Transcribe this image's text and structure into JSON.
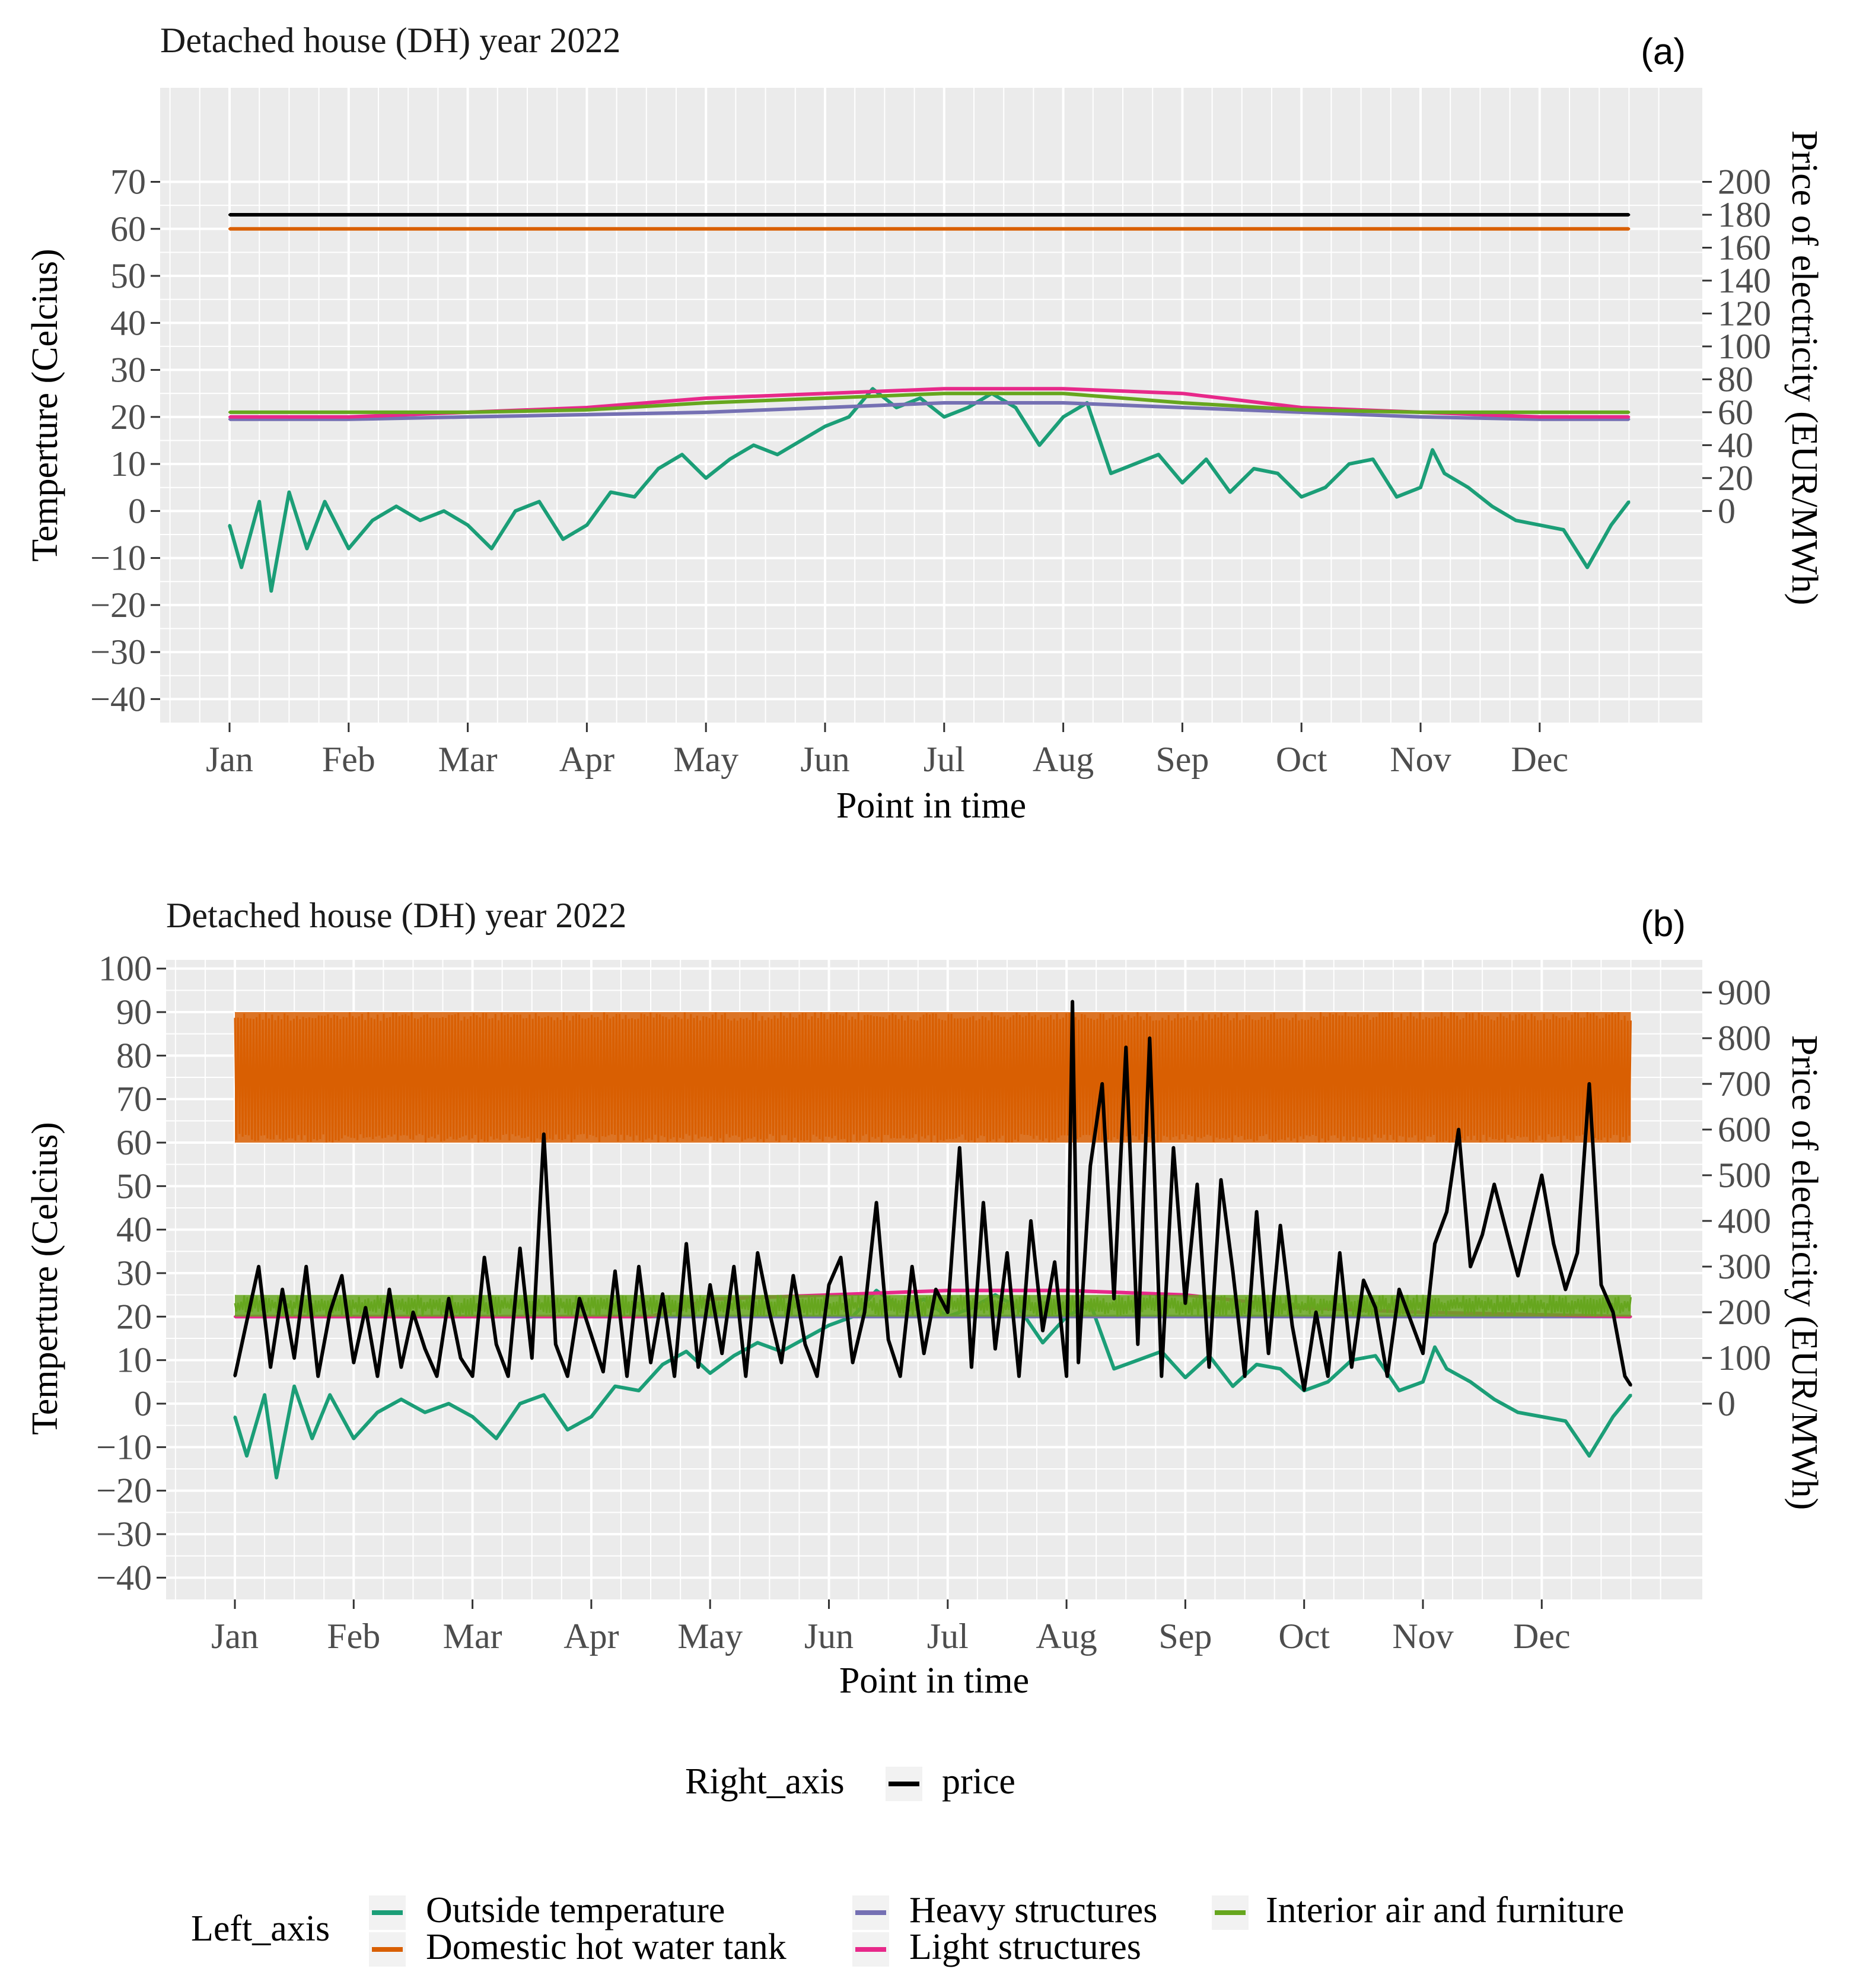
{
  "panels": [
    {
      "title": "Detached house (DH)  year 2022",
      "tag": "(a)"
    },
    {
      "title": "Detached house (DH)  year 2022",
      "tag": "(b)"
    }
  ],
  "legend": {
    "right_axis_title": "Right_axis",
    "right_axis_items": [
      {
        "label": "price",
        "color": "#000000"
      }
    ],
    "left_axis_title": "Left_axis",
    "left_axis_items": [
      {
        "label": "Outside temperature",
        "color": "#1b9e77"
      },
      {
        "label": "Domestic hot water tank",
        "color": "#d95f02"
      },
      {
        "label": "Heavy structures",
        "color": "#7570b3"
      },
      {
        "label": "Light structures",
        "color": "#e7298a"
      },
      {
        "label": "Interior air and furniture",
        "color": "#66a61e"
      }
    ]
  },
  "chart_data": [
    {
      "type": "line",
      "title": "Detached house (DH)  year 2022",
      "tag": "(a)",
      "xlabel": "Point in time",
      "ylabel": "Temperture (Celcius)",
      "ylabel_right": "Price of electricity (EUR/MWh)",
      "x_ticks": [
        "Jan",
        "Feb",
        "Mar",
        "Apr",
        "May",
        "Jun",
        "Jul",
        "Aug",
        "Sep",
        "Oct",
        "Nov",
        "Dec"
      ],
      "y_ticks": [
        -40,
        -30,
        -20,
        -10,
        0,
        10,
        20,
        30,
        40,
        50,
        60,
        70
      ],
      "y_ticks_right": [
        0,
        20,
        40,
        60,
        80,
        100,
        120,
        140,
        160,
        180,
        200
      ],
      "ylim": [
        -45,
        90
      ],
      "right_axis_map": {
        "left_at_0": 0,
        "left_per_unit": 0.35
      },
      "grid": true,
      "series": [
        {
          "name": "Outside temperature",
          "axis": "left",
          "color": "#1b9e77",
          "x_month": [
            0,
            0.1,
            0.25,
            0.35,
            0.5,
            0.65,
            0.8,
            1,
            1.2,
            1.4,
            1.6,
            1.8,
            2,
            2.2,
            2.4,
            2.6,
            2.8,
            3,
            3.2,
            3.4,
            3.6,
            3.8,
            4,
            4.2,
            4.4,
            4.6,
            4.8,
            5,
            5.2,
            5.4,
            5.6,
            5.8,
            6,
            6.2,
            6.4,
            6.6,
            6.8,
            7,
            7.2,
            7.4,
            7.6,
            7.8,
            8,
            8.2,
            8.4,
            8.6,
            8.8,
            9,
            9.2,
            9.4,
            9.6,
            9.8,
            10,
            10.1,
            10.2,
            10.4,
            10.6,
            10.8,
            11,
            11.2,
            11.4,
            11.6,
            11.75
          ],
          "y": [
            -3,
            -12,
            2,
            -17,
            4,
            -8,
            2,
            -8,
            -2,
            1,
            -2,
            0,
            -3,
            -8,
            0,
            2,
            -6,
            -3,
            4,
            3,
            9,
            12,
            7,
            11,
            14,
            12,
            15,
            18,
            20,
            26,
            22,
            24,
            20,
            22,
            25,
            22,
            14,
            20,
            23,
            8,
            10,
            12,
            6,
            11,
            4,
            9,
            8,
            3,
            5,
            10,
            11,
            3,
            5,
            13,
            8,
            5,
            1,
            -2,
            -3,
            -4,
            -12,
            -3,
            2
          ]
        },
        {
          "name": "Domestic hot water tank",
          "axis": "left",
          "color": "#d95f02",
          "x_month": [
            0,
            11.75
          ],
          "y": [
            60,
            60
          ]
        },
        {
          "name": "Heavy structures",
          "axis": "left",
          "color": "#7570b3",
          "x_month": [
            0,
            1,
            2,
            3,
            4,
            5,
            6,
            7,
            8,
            9,
            10,
            11,
            11.75
          ],
          "y": [
            19.5,
            19.5,
            20,
            20.5,
            21,
            22,
            23,
            23,
            22,
            21,
            20,
            19.5,
            19.5
          ]
        },
        {
          "name": "Light structures",
          "axis": "left",
          "color": "#e7298a",
          "x_month": [
            0,
            1,
            2,
            3,
            4,
            5,
            6,
            7,
            8,
            9,
            10,
            11,
            11.75
          ],
          "y": [
            20,
            20,
            21,
            22,
            24,
            25,
            26,
            26,
            25,
            22,
            21,
            20,
            20
          ]
        },
        {
          "name": "Interior air and furniture",
          "axis": "left",
          "color": "#66a61e",
          "x_month": [
            0,
            1,
            2,
            3,
            4,
            5,
            6,
            7,
            8,
            9,
            10,
            11,
            11.75
          ],
          "y": [
            21,
            21,
            21,
            21.5,
            23,
            24,
            25,
            25,
            23,
            21.5,
            21,
            21,
            21
          ]
        },
        {
          "name": "price",
          "axis": "right",
          "color": "#000000",
          "x_month": [
            0,
            11.75
          ],
          "y": [
            180,
            180
          ]
        }
      ]
    },
    {
      "type": "line",
      "title": "Detached house (DH)  year 2022",
      "tag": "(b)",
      "xlabel": "Point in time",
      "ylabel": "Temperture (Celcius)",
      "ylabel_right": "Price of electricity (EUR/MWh)",
      "x_ticks": [
        "Jan",
        "Feb",
        "Mar",
        "Apr",
        "May",
        "Jun",
        "Jul",
        "Aug",
        "Sep",
        "Oct",
        "Nov",
        "Dec"
      ],
      "y_ticks": [
        -40,
        -30,
        -20,
        -10,
        0,
        10,
        20,
        30,
        40,
        50,
        60,
        70,
        80,
        90,
        100
      ],
      "y_ticks_right": [
        0,
        100,
        200,
        300,
        400,
        500,
        600,
        700,
        800,
        900
      ],
      "ylim": [
        -45,
        102
      ],
      "right_axis_map": {
        "left_at_0": 0,
        "left_per_unit": 0.105
      },
      "grid": true,
      "series": [
        {
          "name": "Outside temperature",
          "axis": "left",
          "color": "#1b9e77",
          "x_month": [
            0,
            0.1,
            0.25,
            0.35,
            0.5,
            0.65,
            0.8,
            1,
            1.2,
            1.4,
            1.6,
            1.8,
            2,
            2.2,
            2.4,
            2.6,
            2.8,
            3,
            3.2,
            3.4,
            3.6,
            3.8,
            4,
            4.2,
            4.4,
            4.6,
            4.8,
            5,
            5.2,
            5.4,
            5.6,
            5.8,
            6,
            6.2,
            6.4,
            6.6,
            6.8,
            7,
            7.2,
            7.4,
            7.6,
            7.8,
            8,
            8.2,
            8.4,
            8.6,
            8.8,
            9,
            9.2,
            9.4,
            9.6,
            9.8,
            10,
            10.1,
            10.2,
            10.4,
            10.6,
            10.8,
            11,
            11.2,
            11.4,
            11.6,
            11.75
          ],
          "y": [
            -3,
            -12,
            2,
            -17,
            4,
            -8,
            2,
            -8,
            -2,
            1,
            -2,
            0,
            -3,
            -8,
            0,
            2,
            -6,
            -3,
            4,
            3,
            9,
            12,
            7,
            11,
            14,
            12,
            15,
            18,
            20,
            26,
            22,
            24,
            20,
            22,
            25,
            22,
            14,
            20,
            23,
            8,
            10,
            12,
            6,
            11,
            4,
            9,
            8,
            3,
            5,
            10,
            11,
            3,
            5,
            13,
            8,
            5,
            1,
            -2,
            -3,
            -4,
            -12,
            -3,
            2
          ]
        },
        {
          "name": "Domestic hot water tank",
          "axis": "left",
          "color": "#d95f02",
          "min": 60,
          "max": 90,
          "x_range": [
            0,
            11.75
          ]
        },
        {
          "name": "Heavy structures",
          "axis": "left",
          "color": "#7570b3",
          "x_month": [
            0,
            11.75
          ],
          "y": [
            20,
            20
          ]
        },
        {
          "name": "Light structures",
          "axis": "left",
          "color": "#e7298a",
          "x_month": [
            0,
            3.5,
            4,
            5,
            6,
            7,
            8,
            9,
            10,
            11.75
          ],
          "y": [
            20,
            20,
            24,
            25,
            26,
            26,
            25,
            22,
            21,
            20
          ]
        },
        {
          "name": "Interior air and furniture",
          "axis": "left",
          "color": "#66a61e",
          "min": 20,
          "max": 25,
          "x_range": [
            0,
            11.75
          ]
        },
        {
          "name": "price",
          "axis": "right",
          "color": "#000000",
          "x_month": [
            0,
            0.1,
            0.2,
            0.3,
            0.4,
            0.5,
            0.6,
            0.7,
            0.8,
            0.9,
            1,
            1.1,
            1.2,
            1.3,
            1.4,
            1.5,
            1.6,
            1.7,
            1.8,
            1.9,
            2,
            2.1,
            2.2,
            2.3,
            2.4,
            2.5,
            2.6,
            2.7,
            2.8,
            2.9,
            3,
            3.1,
            3.2,
            3.3,
            3.4,
            3.5,
            3.6,
            3.7,
            3.8,
            3.9,
            4,
            4.1,
            4.2,
            4.3,
            4.4,
            4.5,
            4.6,
            4.7,
            4.8,
            4.9,
            5,
            5.1,
            5.2,
            5.3,
            5.4,
            5.5,
            5.6,
            5.7,
            5.8,
            5.9,
            6,
            6.1,
            6.2,
            6.3,
            6.4,
            6.5,
            6.6,
            6.7,
            6.8,
            6.9,
            7,
            7.05,
            7.1,
            7.2,
            7.3,
            7.4,
            7.5,
            7.6,
            7.7,
            7.8,
            7.9,
            8,
            8.1,
            8.2,
            8.3,
            8.4,
            8.5,
            8.6,
            8.7,
            8.8,
            8.9,
            9,
            9.1,
            9.2,
            9.3,
            9.4,
            9.5,
            9.6,
            9.7,
            9.8,
            9.9,
            10,
            10.1,
            10.2,
            10.3,
            10.4,
            10.5,
            10.6,
            10.7,
            10.8,
            10.9,
            11,
            11.1,
            11.2,
            11.3,
            11.4,
            11.5,
            11.6,
            11.7,
            11.75
          ],
          "y": [
            60,
            180,
            300,
            80,
            250,
            100,
            300,
            60,
            200,
            280,
            90,
            210,
            60,
            250,
            80,
            200,
            120,
            60,
            230,
            100,
            60,
            320,
            130,
            60,
            340,
            100,
            590,
            130,
            60,
            230,
            150,
            70,
            290,
            60,
            300,
            90,
            240,
            60,
            350,
            80,
            260,
            110,
            300,
            60,
            330,
            200,
            90,
            280,
            130,
            60,
            260,
            320,
            90,
            200,
            440,
            140,
            60,
            300,
            110,
            250,
            200,
            560,
            80,
            440,
            120,
            330,
            60,
            400,
            160,
            310,
            60,
            880,
            90,
            520,
            700,
            230,
            780,
            130,
            800,
            60,
            560,
            220,
            480,
            80,
            490,
            290,
            60,
            420,
            110,
            390,
            170,
            30,
            200,
            60,
            330,
            80,
            270,
            210,
            60,
            250,
            180,
            110,
            350,
            420,
            600,
            300,
            370,
            480,
            380,
            280,
            390,
            500,
            350,
            250,
            330,
            700,
            260,
            200,
            60,
            40
          ]
        }
      ]
    }
  ]
}
